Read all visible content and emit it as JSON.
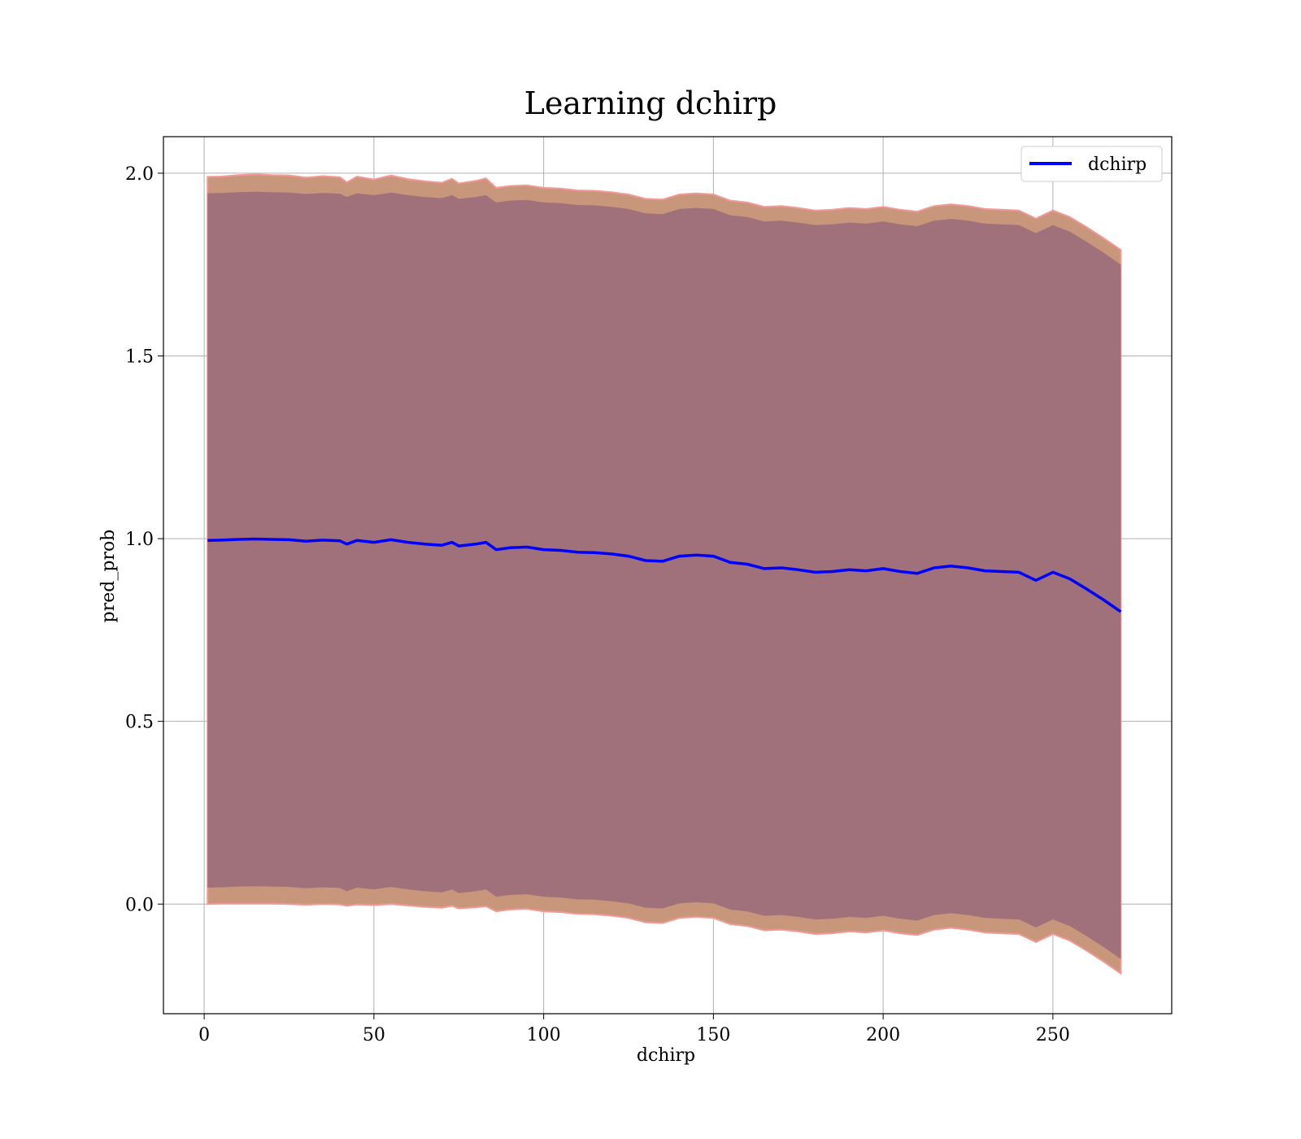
{
  "chart_data": {
    "type": "line",
    "title": "Learning dchirp",
    "xlabel": "dchirp",
    "ylabel": "pred_prob",
    "xlim": [
      -12,
      285
    ],
    "ylim": [
      -0.3,
      2.1
    ],
    "xticks": [
      0,
      50,
      100,
      150,
      200,
      250
    ],
    "xtick_labels": [
      "0",
      "50",
      "100",
      "150",
      "200",
      "250"
    ],
    "yticks": [
      0.0,
      0.5,
      1.0,
      1.5,
      2.0
    ],
    "ytick_labels": [
      "0.0",
      "0.5",
      "1.0",
      "1.5",
      "2.0"
    ],
    "grid": true,
    "legend_position": "top-right",
    "colors": {
      "line": "#0000ff",
      "inner_band": "#a0717a",
      "outer_band": "#c8967a",
      "band_edge": "#f29a98",
      "grid": "#b0b0b0"
    },
    "series": [
      {
        "name": "dchirp",
        "x": [
          1,
          5,
          10,
          15,
          20,
          25,
          30,
          35,
          40,
          42,
          45,
          50,
          55,
          60,
          65,
          70,
          73,
          75,
          80,
          83,
          86,
          90,
          95,
          100,
          105,
          110,
          115,
          120,
          125,
          130,
          135,
          140,
          145,
          150,
          155,
          160,
          165,
          170,
          175,
          180,
          185,
          190,
          195,
          200,
          205,
          210,
          215,
          220,
          225,
          230,
          235,
          240,
          245,
          250,
          255,
          260,
          265,
          270
        ],
        "y": [
          0.995,
          0.996,
          0.998,
          0.999,
          0.998,
          0.997,
          0.993,
          0.996,
          0.994,
          0.985,
          0.995,
          0.99,
          0.997,
          0.99,
          0.985,
          0.982,
          0.99,
          0.98,
          0.985,
          0.99,
          0.97,
          0.975,
          0.977,
          0.97,
          0.968,
          0.963,
          0.962,
          0.958,
          0.952,
          0.94,
          0.938,
          0.952,
          0.955,
          0.952,
          0.935,
          0.93,
          0.918,
          0.92,
          0.915,
          0.908,
          0.91,
          0.915,
          0.912,
          0.918,
          0.91,
          0.905,
          0.92,
          0.925,
          0.92,
          0.912,
          0.91,
          0.908,
          0.886,
          0.908,
          0.89,
          0.862,
          0.832,
          0.8
        ]
      }
    ],
    "band_inner_halfwidth": [
      0.95,
      0.95,
      0.95,
      0.95,
      0.95,
      0.95,
      0.95,
      0.95,
      0.95,
      0.95,
      0.95,
      0.95,
      0.95,
      0.95,
      0.95,
      0.95,
      0.95,
      0.95,
      0.95,
      0.95,
      0.95,
      0.95,
      0.95,
      0.95,
      0.95,
      0.95,
      0.95,
      0.95,
      0.95,
      0.95,
      0.95,
      0.95,
      0.95,
      0.95,
      0.95,
      0.95,
      0.95,
      0.95,
      0.95,
      0.95,
      0.95,
      0.95,
      0.95,
      0.95,
      0.95,
      0.95,
      0.95,
      0.95,
      0.95,
      0.95,
      0.95,
      0.95,
      0.95,
      0.95,
      0.95,
      0.95,
      0.95,
      0.95
    ],
    "band_outer_halfwidth": [
      0.995,
      0.995,
      0.997,
      0.998,
      0.997,
      0.997,
      0.995,
      0.996,
      0.995,
      0.99,
      0.996,
      0.993,
      0.997,
      0.994,
      0.993,
      0.992,
      0.995,
      0.992,
      0.994,
      0.996,
      0.99,
      0.99,
      0.99,
      0.99,
      0.99,
      0.99,
      0.99,
      0.99,
      0.99,
      0.99,
      0.99,
      0.99,
      0.99,
      0.99,
      0.99,
      0.99,
      0.99,
      0.99,
      0.99,
      0.99,
      0.99,
      0.99,
      0.99,
      0.99,
      0.99,
      0.99,
      0.99,
      0.99,
      0.99,
      0.99,
      0.99,
      0.99,
      0.99,
      0.99,
      0.99,
      0.99,
      0.99,
      0.99
    ]
  }
}
